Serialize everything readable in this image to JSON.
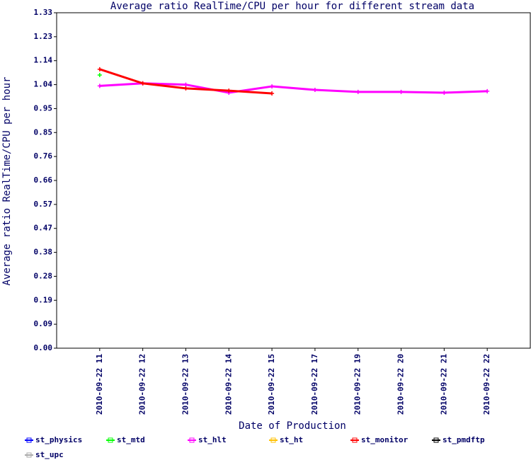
{
  "chart_data": {
    "type": "line",
    "title": "Average ratio RealTime/CPU per hour for different stream data",
    "x_label": "Date of Production",
    "y_label": "Average ratio RealTime/CPU per hour",
    "categories": [
      "2010-09-22 11",
      "2010-09-22 12",
      "2010-09-22 13",
      "2010-09-22 14",
      "2010-09-22 15",
      "2010-09-22 17",
      "2010-09-22 19",
      "2010-09-22 20",
      "2010-09-22 21",
      "2010-09-22 22"
    ],
    "ylim": [
      0,
      1.33
    ],
    "yticks": [
      {
        "value": 0,
        "label": "0.00"
      },
      {
        "value": 0.095,
        "label": "0.09"
      },
      {
        "value": 0.19,
        "label": "0.19"
      },
      {
        "value": 0.285,
        "label": "0.28"
      },
      {
        "value": 0.38,
        "label": "0.38"
      },
      {
        "value": 0.475,
        "label": "0.47"
      },
      {
        "value": 0.57,
        "label": "0.57"
      },
      {
        "value": 0.665,
        "label": "0.66"
      },
      {
        "value": 0.76,
        "label": "0.76"
      },
      {
        "value": 0.855,
        "label": "0.85"
      },
      {
        "value": 0.95,
        "label": "0.95"
      },
      {
        "value": 1.045,
        "label": "1.04"
      },
      {
        "value": 1.14,
        "label": "1.14"
      },
      {
        "value": 1.235,
        "label": "1.23"
      },
      {
        "value": 1.33,
        "label": "1.33"
      }
    ],
    "series": [
      {
        "name": "st_physics",
        "color": "#0000ff",
        "values": [
          null,
          null,
          null,
          null,
          null,
          null,
          null,
          null,
          null,
          null
        ]
      },
      {
        "name": "st_mtd",
        "color": "#00ff00",
        "values": [
          1.083,
          null,
          null,
          null,
          null,
          null,
          null,
          null,
          null,
          null
        ]
      },
      {
        "name": "st_hlt",
        "color": "#ff00ff",
        "values": [
          1.04,
          1.05,
          1.045,
          1.013,
          1.038,
          1.024,
          1.016,
          1.016,
          1.013,
          1.019
        ]
      },
      {
        "name": "st_ht",
        "color": "#ffc000",
        "values": [
          null,
          null,
          null,
          null,
          null,
          null,
          null,
          null,
          null,
          null
        ]
      },
      {
        "name": "st_monitor",
        "color": "#ff0000",
        "values": [
          1.106,
          1.05,
          1.03,
          1.021,
          1.01,
          null,
          null,
          null,
          null,
          null
        ]
      },
      {
        "name": "st_pmdftp",
        "color": "#000000",
        "values": [
          null,
          null,
          null,
          null,
          null,
          null,
          null,
          null,
          null,
          null
        ]
      },
      {
        "name": "st_upc",
        "color": "#aaaaaa",
        "values": [
          null,
          null,
          null,
          null,
          null,
          null,
          null,
          null,
          null,
          null
        ]
      }
    ]
  }
}
